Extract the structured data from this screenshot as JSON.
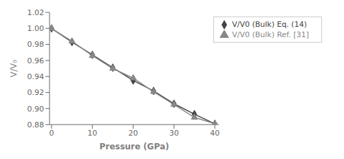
{
  "chart_data": {
    "type": "line",
    "x": [
      0,
      5,
      10,
      15,
      20,
      25,
      30,
      35,
      40
    ],
    "series": [
      {
        "name": "V/V0 (Bulk) Eq. (14)",
        "color": "#444444",
        "marker": "diamond",
        "values": [
          1.0,
          0.983,
          0.967,
          0.951,
          0.935,
          0.922,
          0.906,
          0.893,
          0.881
        ]
      },
      {
        "name": "V/V0 (Bulk) Ref. [31]",
        "color": "#888888",
        "marker": "triangle",
        "values": [
          1.0,
          0.984,
          0.966,
          0.95,
          0.938,
          0.921,
          0.905,
          0.889,
          0.881
        ]
      }
    ],
    "xlabel": "Pressure (GPa)",
    "ylabel": "V/V₀",
    "xlim": [
      -0.5,
      41
    ],
    "ylim": [
      0.88,
      1.02
    ],
    "xticks": [
      0,
      10,
      20,
      30,
      40
    ],
    "yticks": [
      0.88,
      {
        "value": 0.9,
        "label": "0.90"
      },
      0.92,
      0.94,
      0.96,
      0.98,
      {
        "value": 1,
        "label": "1.00"
      },
      1.02
    ],
    "grid": false,
    "legend": "upper right"
  }
}
